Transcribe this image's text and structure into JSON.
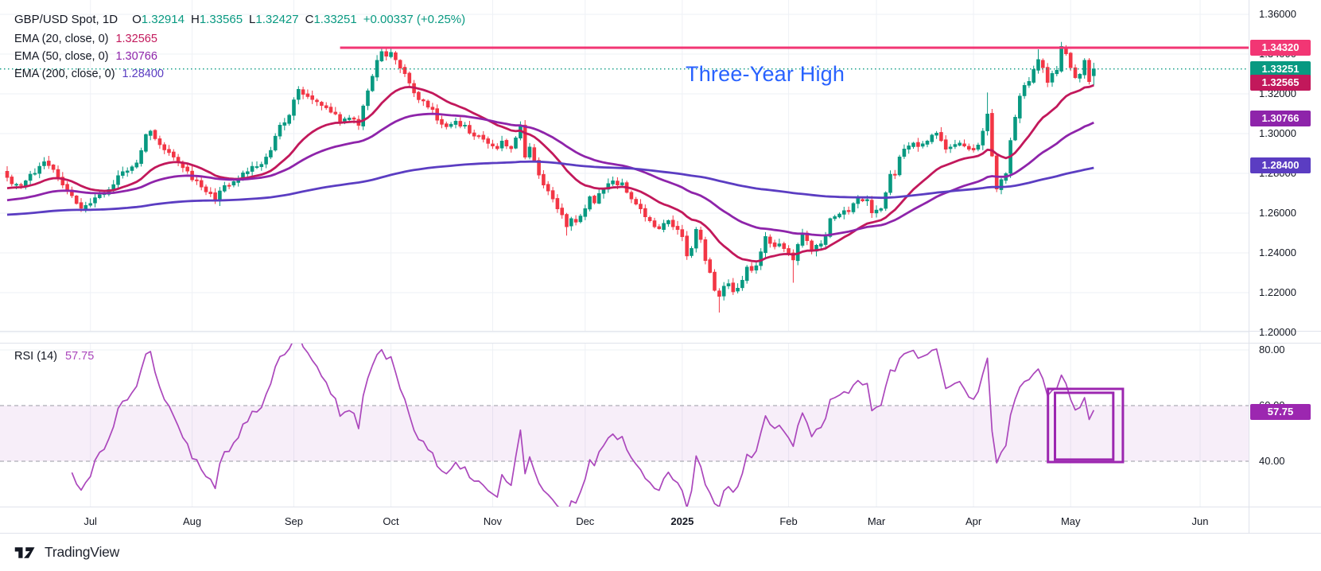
{
  "header": {
    "symbol_title": "GBP/USD Spot, 1D",
    "ohlc": {
      "o_label": "O",
      "o_value": "1.32914",
      "h_label": "H",
      "h_value": "1.33565",
      "l_label": "L",
      "l_value": "1.32427",
      "c_label": "C",
      "c_value": "1.33251",
      "change_value": "+0.00337 (+0.25%)"
    },
    "indicators": [
      {
        "label": "EMA (20, close, 0)",
        "value": "1.32565",
        "color": "#c2185b"
      },
      {
        "label": "EMA (50, close, 0)",
        "value": "1.30766",
        "color": "#8e24aa"
      },
      {
        "label": "EMA (200, close, 0)",
        "value": "1.28400",
        "color": "#5b3dc2"
      }
    ]
  },
  "rsi_pane": {
    "label": "RSI (14)",
    "value": "57.75",
    "value_color": "#ab47bc"
  },
  "annotation": {
    "text": "Three-Year High",
    "color": "#2962ff"
  },
  "watermark": {
    "brand": "TradingView"
  },
  "price_axis": {
    "ticks": [
      {
        "text": "1.36000",
        "price": 1.36
      },
      {
        "text": "1.34000",
        "price": 1.34
      },
      {
        "text": "1.32000",
        "price": 1.32
      },
      {
        "text": "1.30000",
        "price": 1.3
      },
      {
        "text": "1.28000",
        "price": 1.28
      },
      {
        "text": "1.26000",
        "price": 1.26
      },
      {
        "text": "1.24000",
        "price": 1.24
      },
      {
        "text": "1.22000",
        "price": 1.22
      },
      {
        "text": "1.20000",
        "price": 1.2
      }
    ],
    "badges": [
      {
        "text": "1.34320",
        "price": 1.3432,
        "color": "#f23674",
        "name": "hline-price-badge"
      },
      {
        "text": "1.33251",
        "price": 1.33251,
        "color": "#089981",
        "name": "last-price-badge"
      },
      {
        "text": "1.32565",
        "price": 1.32565,
        "color": "#c2185b",
        "name": "ema20-value-badge"
      },
      {
        "text": "1.30766",
        "price": 1.30766,
        "color": "#8e24aa",
        "name": "ema50-value-badge"
      },
      {
        "text": "1.28400",
        "price": 1.284,
        "color": "#5b3dc2",
        "name": "ema200-value-badge"
      }
    ]
  },
  "rsi_axis": {
    "ticks": [
      {
        "text": "80.00",
        "value": 80
      },
      {
        "text": "60.00",
        "value": 60
      },
      {
        "text": "40.00",
        "value": 40
      }
    ],
    "badge": {
      "text": "57.75",
      "value": 57.75,
      "color": "#9c27b0"
    }
  },
  "time_axis": {
    "labels": [
      {
        "text": "Jul",
        "day": 18
      },
      {
        "text": "Aug",
        "day": 40
      },
      {
        "text": "Sep",
        "day": 62
      },
      {
        "text": "Oct",
        "day": 83
      },
      {
        "text": "Nov",
        "day": 105
      },
      {
        "text": "Dec",
        "day": 125
      },
      {
        "text": "2025",
        "day": 146,
        "bold": true
      },
      {
        "text": "Feb",
        "day": 169
      },
      {
        "text": "Mar",
        "day": 188
      },
      {
        "text": "Apr",
        "day": 209
      },
      {
        "text": "May",
        "day": 230
      },
      {
        "text": "Jun",
        "day": 258
      }
    ]
  },
  "chart_data": {
    "type": "candlestick",
    "title": "GBP/USD Spot",
    "timeframe": "1D",
    "bar_count": 236,
    "ylim": [
      1.1928,
      1.3672
    ],
    "price_gridlines": [
      1.36,
      1.34,
      1.32,
      1.3,
      1.28,
      1.26,
      1.24,
      1.22,
      1.2
    ],
    "up_color": "#089981",
    "down_color": "#f23645",
    "grid_color": "#eef1f6",
    "last_bar": {
      "open": 1.32914,
      "high": 1.33565,
      "low": 1.32427,
      "close": 1.33251,
      "change": 0.00337,
      "change_pct": 0.25
    },
    "close_waypoints": [
      [
        0,
        1.278
      ],
      [
        2,
        1.2745
      ],
      [
        4,
        1.2762
      ],
      [
        6,
        1.28
      ],
      [
        8,
        1.2858
      ],
      [
        10,
        1.282
      ],
      [
        12,
        1.2742
      ],
      [
        14,
        1.2688
      ],
      [
        16,
        1.2625
      ],
      [
        18,
        1.2648
      ],
      [
        20,
        1.2692
      ],
      [
        22,
        1.2718
      ],
      [
        24,
        1.2788
      ],
      [
        26,
        1.2812
      ],
      [
        28,
        1.2852
      ],
      [
        30,
        1.2995
      ],
      [
        31,
        1.3012
      ],
      [
        33,
        1.2945
      ],
      [
        35,
        1.2905
      ],
      [
        37,
        1.2858
      ],
      [
        39,
        1.2812
      ],
      [
        40,
        1.2768
      ],
      [
        42,
        1.2732
      ],
      [
        44,
        1.2698
      ],
      [
        45,
        1.2662
      ],
      [
        47,
        1.2738
      ],
      [
        49,
        1.2758
      ],
      [
        51,
        1.2802
      ],
      [
        53,
        1.2835
      ],
      [
        55,
        1.2845
      ],
      [
        57,
        1.2915
      ],
      [
        59,
        1.3042
      ],
      [
        61,
        1.3092
      ],
      [
        63,
        1.3222
      ],
      [
        64,
        1.3198
      ],
      [
        66,
        1.3172
      ],
      [
        68,
        1.3142
      ],
      [
        70,
        1.3108
      ],
      [
        72,
        1.3062
      ],
      [
        74,
        1.3078
      ],
      [
        76,
        1.3042
      ],
      [
        78,
        1.3215
      ],
      [
        79,
        1.3288
      ],
      [
        80,
        1.3368
      ],
      [
        81,
        1.3412
      ],
      [
        82,
        1.339
      ],
      [
        83,
        1.3408
      ],
      [
        84,
        1.3372
      ],
      [
        85,
        1.333
      ],
      [
        86,
        1.3302
      ],
      [
        87,
        1.3255
      ],
      [
        88,
        1.3205
      ],
      [
        90,
        1.3165
      ],
      [
        92,
        1.3122
      ],
      [
        93,
        1.3068
      ],
      [
        95,
        1.3035
      ],
      [
        97,
        1.3062
      ],
      [
        99,
        1.3042
      ],
      [
        101,
        1.2988
      ],
      [
        103,
        1.2972
      ],
      [
        105,
        1.2938
      ],
      [
        106,
        1.2925
      ],
      [
        107,
        1.2962
      ],
      [
        108,
        1.2938
      ],
      [
        109,
        1.2925
      ],
      [
        110,
        1.2978
      ],
      [
        111,
        1.3042
      ],
      [
        112,
        1.2882
      ],
      [
        113,
        1.2932
      ],
      [
        114,
        1.2865
      ],
      [
        115,
        1.2792
      ],
      [
        116,
        1.2742
      ],
      [
        117,
        1.2712
      ],
      [
        118,
        1.2672
      ],
      [
        119,
        1.2622
      ],
      [
        120,
        1.2592
      ],
      [
        121,
        1.2532
      ],
      [
        122,
        1.2572
      ],
      [
        123,
        1.2555
      ],
      [
        124,
        1.2585
      ],
      [
        125,
        1.2622
      ],
      [
        126,
        1.2682
      ],
      [
        127,
        1.2652
      ],
      [
        128,
        1.2698
      ],
      [
        130,
        1.2748
      ],
      [
        131,
        1.2762
      ],
      [
        132,
        1.2742
      ],
      [
        133,
        1.2752
      ],
      [
        134,
        1.2705
      ],
      [
        135,
        1.2672
      ],
      [
        137,
        1.2622
      ],
      [
        138,
        1.2582
      ],
      [
        139,
        1.2562
      ],
      [
        140,
        1.2532
      ],
      [
        141,
        1.2522
      ],
      [
        142,
        1.2548
      ],
      [
        143,
        1.2562
      ],
      [
        144,
        1.2532
      ],
      [
        145,
        1.2518
      ],
      [
        146,
        1.2482
      ],
      [
        147,
        1.2385
      ],
      [
        148,
        1.2422
      ],
      [
        149,
        1.2518
      ],
      [
        150,
        1.2468
      ],
      [
        151,
        1.2362
      ],
      [
        152,
        1.2302
      ],
      [
        153,
        1.2212
      ],
      [
        154,
        1.2182
      ],
      [
        155,
        1.2232
      ],
      [
        156,
        1.2245
      ],
      [
        157,
        1.2205
      ],
      [
        158,
        1.2222
      ],
      [
        159,
        1.2262
      ],
      [
        160,
        1.2328
      ],
      [
        161,
        1.2312
      ],
      [
        162,
        1.2335
      ],
      [
        163,
        1.2405
      ],
      [
        164,
        1.2482
      ],
      [
        165,
        1.2448
      ],
      [
        166,
        1.2432
      ],
      [
        167,
        1.2445
      ],
      [
        168,
        1.2422
      ],
      [
        169,
        1.2398
      ],
      [
        170,
        1.2365
      ],
      [
        171,
        1.2442
      ],
      [
        172,
        1.2498
      ],
      [
        173,
        1.2462
      ],
      [
        174,
        1.2408
      ],
      [
        175,
        1.2438
      ],
      [
        176,
        1.2445
      ],
      [
        177,
        1.2482
      ],
      [
        178,
        1.2572
      ],
      [
        179,
        1.2582
      ],
      [
        180,
        1.2595
      ],
      [
        181,
        1.2612
      ],
      [
        182,
        1.2608
      ],
      [
        183,
        1.2648
      ],
      [
        184,
        1.2672
      ],
      [
        185,
        1.2662
      ],
      [
        186,
        1.2668
      ],
      [
        187,
        1.2602
      ],
      [
        188,
        1.2615
      ],
      [
        189,
        1.2622
      ],
      [
        190,
        1.2702
      ],
      [
        191,
        1.2795
      ],
      [
        192,
        1.2792
      ],
      [
        193,
        1.2882
      ],
      [
        194,
        1.2922
      ],
      [
        195,
        1.2938
      ],
      [
        196,
        1.2952
      ],
      [
        197,
        1.2935
      ],
      [
        198,
        1.2948
      ],
      [
        199,
        1.2962
      ],
      [
        200,
        1.2992
      ],
      [
        201,
        1.3002
      ],
      [
        202,
        1.2965
      ],
      [
        203,
        1.2922
      ],
      [
        204,
        1.2932
      ],
      [
        205,
        1.2945
      ],
      [
        206,
        1.2952
      ],
      [
        207,
        1.2938
      ],
      [
        208,
        1.2922
      ],
      [
        209,
        1.2918
      ],
      [
        210,
        1.2942
      ],
      [
        211,
        1.3012
      ],
      [
        212,
        1.3098
      ],
      [
        213,
        1.2888
      ],
      [
        214,
        1.2722
      ],
      [
        215,
        1.2768
      ],
      [
        216,
        1.2798
      ],
      [
        217,
        1.2965
      ],
      [
        218,
        1.3082
      ],
      [
        219,
        1.3188
      ],
      [
        220,
        1.3242
      ],
      [
        221,
        1.3262
      ],
      [
        222,
        1.3322
      ],
      [
        223,
        1.3372
      ],
      [
        224,
        1.3332
      ],
      [
        225,
        1.3258
      ],
      [
        226,
        1.3302
      ],
      [
        227,
        1.3318
      ],
      [
        228,
        1.3438
      ],
      [
        229,
        1.3402
      ],
      [
        230,
        1.3332
      ],
      [
        231,
        1.3282
      ],
      [
        232,
        1.3298
      ],
      [
        233,
        1.3368
      ],
      [
        234,
        1.3262
      ],
      [
        235,
        1.33251
      ]
    ],
    "wick_events": [
      {
        "day": 81,
        "high": 1.343
      },
      {
        "day": 83,
        "high": 1.3434
      },
      {
        "day": 121,
        "low": 1.2487
      },
      {
        "day": 154,
        "low": 1.21
      },
      {
        "day": 170,
        "low": 1.225
      },
      {
        "day": 212,
        "high": 1.3207
      },
      {
        "day": 214,
        "low": 1.271
      },
      {
        "day": 223,
        "high": 1.3424
      },
      {
        "day": 228,
        "high": 1.3443
      }
    ],
    "indicators": [
      {
        "type": "EMA",
        "length": 20,
        "seed": 1.272,
        "color": "#c2185b",
        "last_value": 1.32565
      },
      {
        "type": "EMA",
        "length": 50,
        "seed": 1.266,
        "color": "#8e24aa",
        "last_value": 1.30766
      },
      {
        "type": "EMA",
        "length": 200,
        "seed": 1.259,
        "color": "#5b3dc2",
        "last_value": 1.284
      }
    ],
    "rsi": {
      "type": "RSI",
      "length": 14,
      "color": "#ab47bc",
      "last_value": 57.75,
      "levels": {
        "top": 80,
        "upper": 60,
        "lower": 40
      },
      "band_fill": "rgba(156,39,176,0.08)",
      "level_line_color": "#787b86"
    },
    "price_line": {
      "value": 1.33251,
      "color": "#089981",
      "style": "dotted"
    },
    "horizontal_line": {
      "value": 1.3432,
      "start_day": 72,
      "color": "#f23674",
      "label": "Three-Year High"
    },
    "drawings": {
      "rectangles": [
        {
          "day1": 225.1,
          "day2": 241.3,
          "rsi1": 39.7,
          "rsi2": 66.0,
          "color": "#9c27b0"
        },
        {
          "day1": 226.6,
          "day2": 239.2,
          "rsi1": 40.6,
          "rsi2": 64.6,
          "color": "#9c27b0"
        }
      ]
    }
  }
}
